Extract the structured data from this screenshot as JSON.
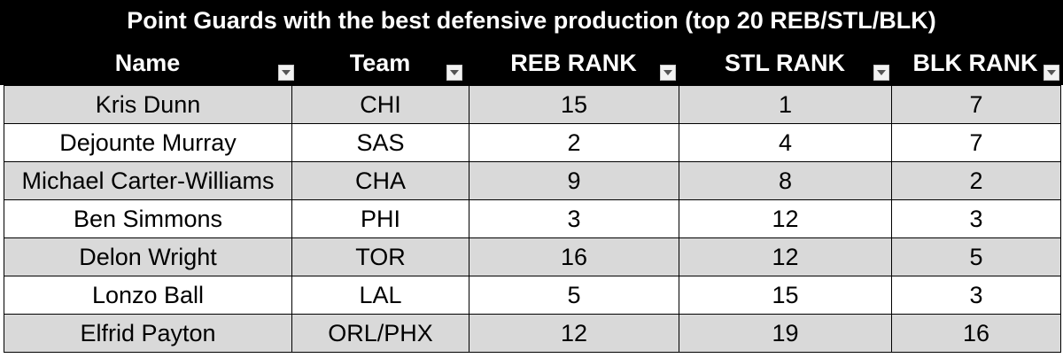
{
  "title": "Point Guards with the best defensive production (top 20 REB/STL/BLK)",
  "columns": [
    {
      "label": "Name"
    },
    {
      "label": "Team"
    },
    {
      "label": "REB RANK"
    },
    {
      "label": "STL RANK"
    },
    {
      "label": "BLK RANK"
    }
  ],
  "rows": [
    {
      "name": "Kris Dunn",
      "team": "CHI",
      "reb": "15",
      "stl": "1",
      "blk": "7"
    },
    {
      "name": "Dejounte Murray",
      "team": "SAS",
      "reb": "2",
      "stl": "4",
      "blk": "7"
    },
    {
      "name": "Michael Carter-Williams",
      "team": "CHA",
      "reb": "9",
      "stl": "8",
      "blk": "2"
    },
    {
      "name": "Ben Simmons",
      "team": "PHI",
      "reb": "3",
      "stl": "12",
      "blk": "3"
    },
    {
      "name": "Delon Wright",
      "team": "TOR",
      "reb": "16",
      "stl": "12",
      "blk": "5"
    },
    {
      "name": "Lonzo Ball",
      "team": "LAL",
      "reb": "5",
      "stl": "15",
      "blk": "3"
    },
    {
      "name": "Elfrid Payton",
      "team": "ORL/PHX",
      "reb": "12",
      "stl": "19",
      "blk": "16"
    }
  ],
  "colors": {
    "header_bg": "#000000",
    "header_text": "#ffffff",
    "band_shaded": "#d9d9d9",
    "band_plain": "#ffffff",
    "grid": "#000000"
  },
  "icons": {
    "filter": "filter-dropdown-icon"
  }
}
